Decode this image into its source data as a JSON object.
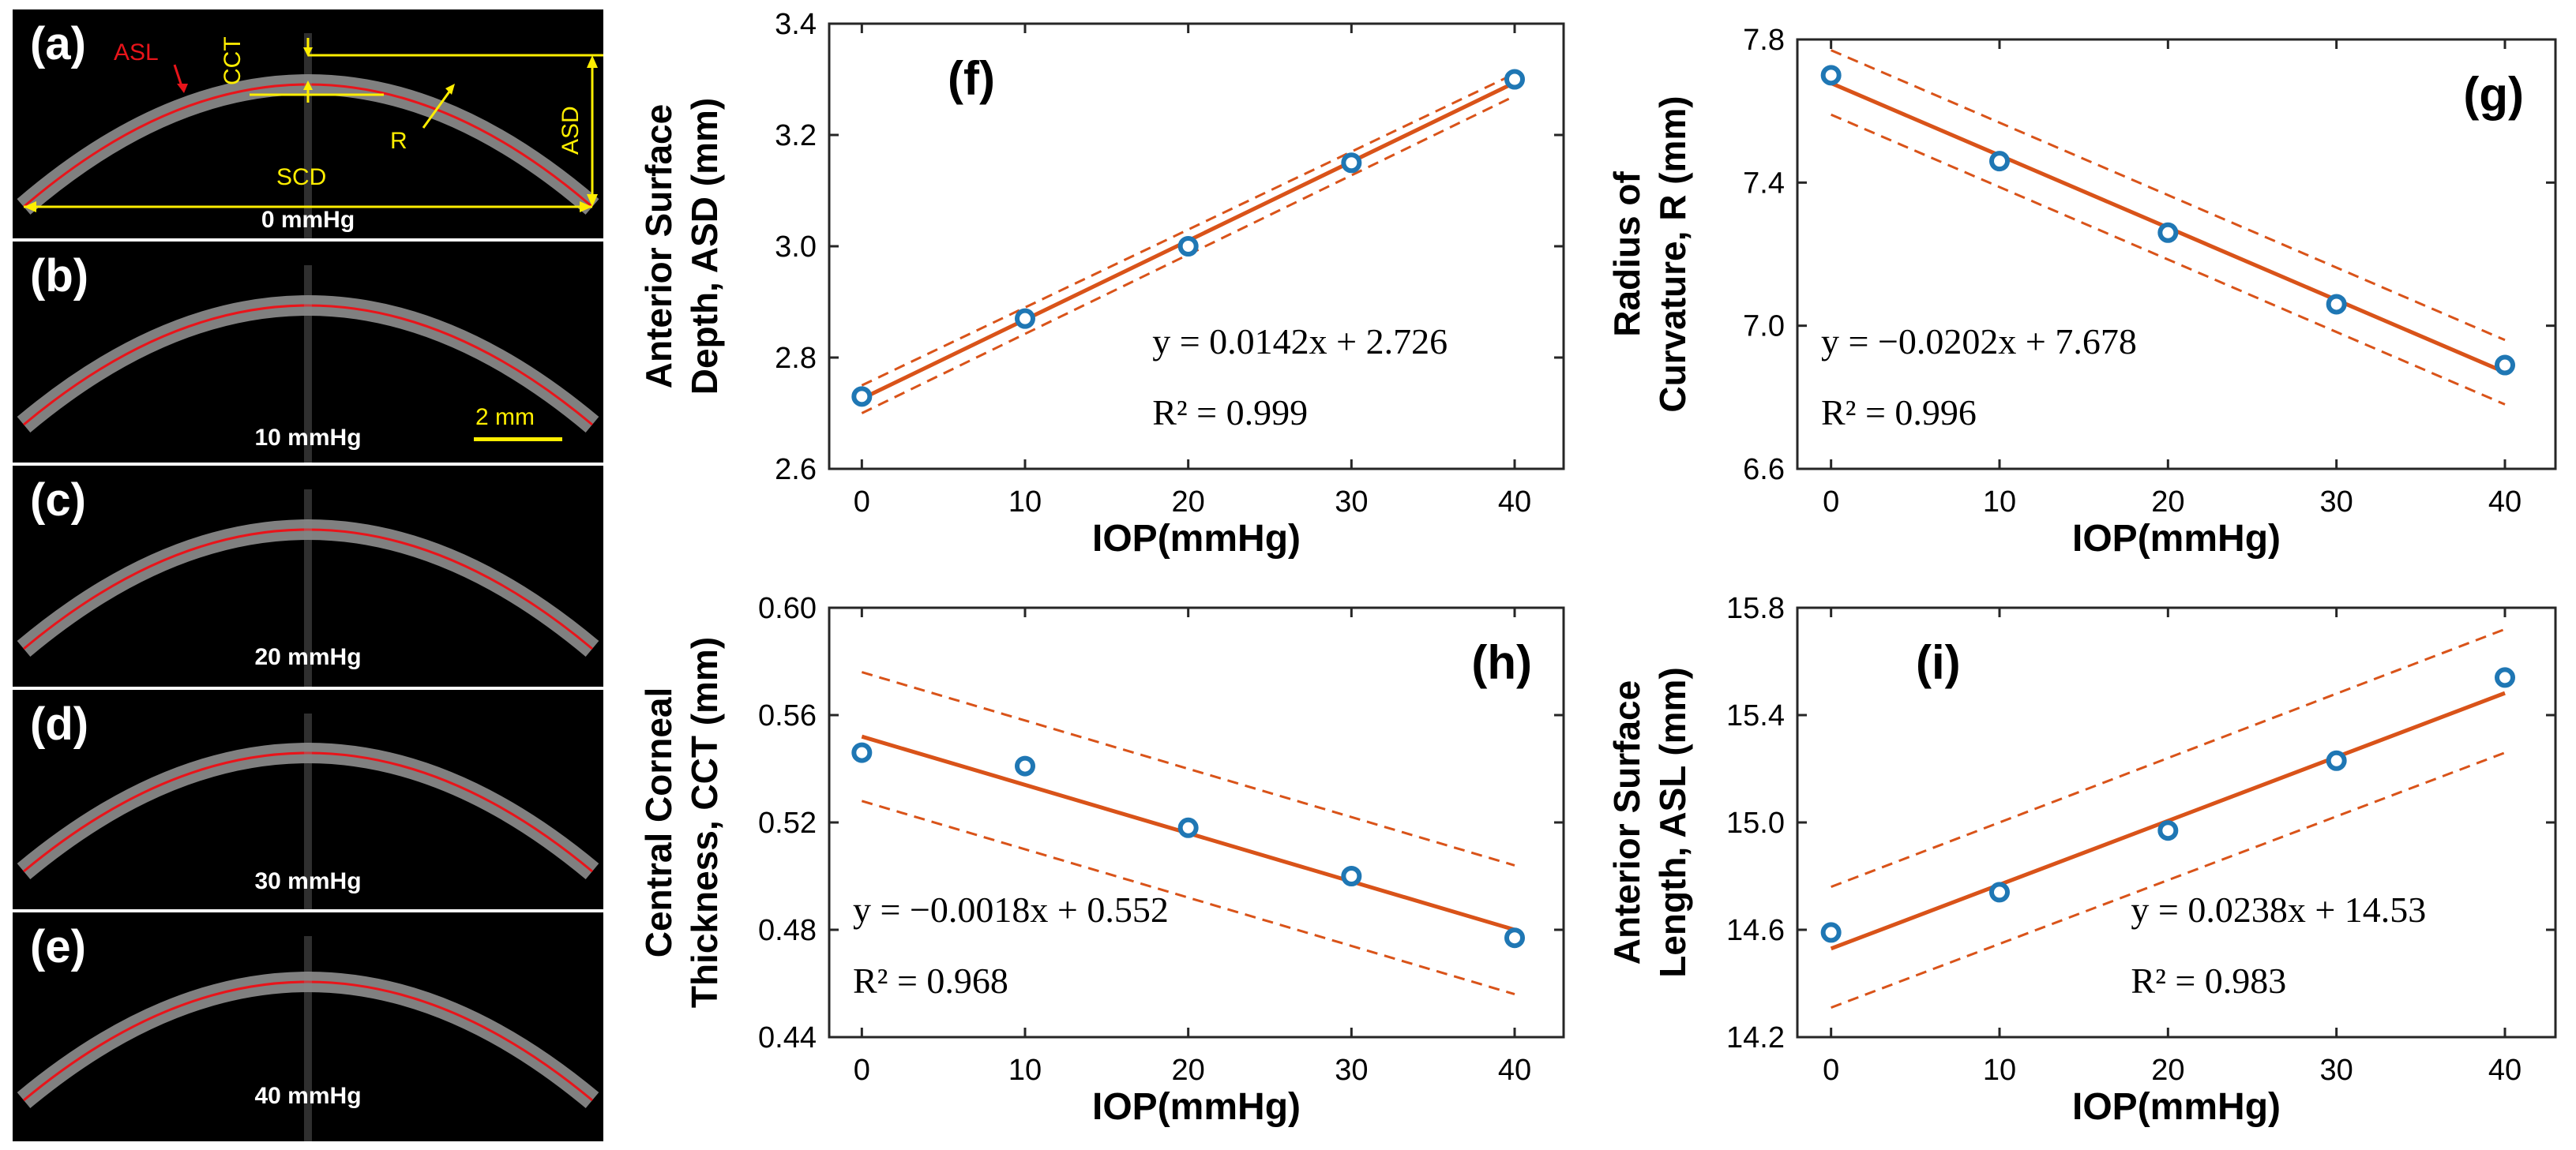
{
  "oct_panels": [
    {
      "letter": "(a)",
      "pressure": "0 mmHg"
    },
    {
      "letter": "(b)",
      "pressure": "10 mmHg"
    },
    {
      "letter": "(c)",
      "pressure": "20 mmHg"
    },
    {
      "letter": "(d)",
      "pressure": "30 mmHg"
    },
    {
      "letter": "(e)",
      "pressure": "40 mmHg"
    }
  ],
  "annotations": {
    "asl": "ASL",
    "cct": "CCT",
    "r": "R",
    "asd": "ASD",
    "scd": "SCD",
    "scale_bar": "2 mm"
  },
  "colors": {
    "points": "#1f77b4",
    "fit": "#d95319",
    "annotation": "#ffee00",
    "edge": "#e8141a"
  },
  "chart_data": [
    {
      "id": "f",
      "type": "scatter",
      "panel_letter": "(f)",
      "letter_pos": "top-left",
      "ylabel_lines": [
        "Anterior Surface",
        "Depth, ASD (mm)"
      ],
      "xlabel": "IOP(mmHg)",
      "x": [
        0,
        10,
        20,
        30,
        40
      ],
      "y": [
        2.73,
        2.87,
        3.0,
        3.15,
        3.3
      ],
      "xlim": [
        -2,
        43
      ],
      "ylim": [
        2.6,
        3.4
      ],
      "xticks": [
        0,
        10,
        20,
        30,
        40
      ],
      "xtick_labels": [
        "0",
        "10",
        "20",
        "30",
        "40"
      ],
      "yticks": [
        2.6,
        2.8,
        3.0,
        3.2,
        3.4
      ],
      "ytick_labels": [
        "2.6",
        "2.8",
        "3.0",
        "3.2",
        "3.4"
      ],
      "fit": {
        "slope": 0.0142,
        "intercept": 2.726
      },
      "ci": {
        "upper": [
          2.75,
          3.31
        ],
        "lower": [
          2.7,
          3.27
        ]
      },
      "equation": "y = 0.0142x + 2.726",
      "r2": "R² = 0.999",
      "equation_pos": "lower-right"
    },
    {
      "id": "g",
      "type": "scatter",
      "panel_letter": "(g)",
      "letter_pos": "top-right",
      "ylabel_lines": [
        "Radius of",
        "Curvature, R (mm)"
      ],
      "xlabel": "IOP(mmHg)",
      "x": [
        0,
        10,
        20,
        30,
        40
      ],
      "y": [
        7.7,
        7.46,
        7.26,
        7.06,
        6.89
      ],
      "xlim": [
        -2,
        43
      ],
      "ylim": [
        6.6,
        7.8
      ],
      "xticks": [
        0,
        10,
        20,
        30,
        40
      ],
      "xtick_labels": [
        "0",
        "10",
        "20",
        "30",
        "40"
      ],
      "yticks": [
        6.6,
        7.0,
        7.4,
        7.8
      ],
      "ytick_labels": [
        "6.6",
        "7.0",
        "7.4",
        "7.8"
      ],
      "fit": {
        "slope": -0.0202,
        "intercept": 7.678
      },
      "ci": {
        "upper": [
          7.77,
          6.96
        ],
        "lower": [
          7.59,
          6.78
        ]
      },
      "equation": "y = −0.0202x + 7.678",
      "r2": "R² = 0.996",
      "equation_pos": "lower-left"
    },
    {
      "id": "h",
      "type": "scatter",
      "panel_letter": "(h)",
      "letter_pos": "top-right",
      "ylabel_lines": [
        "Central Corneal",
        "Thickness, CCT (mm)"
      ],
      "xlabel": "IOP(mmHg)",
      "x": [
        0,
        10,
        20,
        30,
        40
      ],
      "y": [
        0.546,
        0.541,
        0.518,
        0.5,
        0.477
      ],
      "xlim": [
        -2,
        43
      ],
      "ylim": [
        0.44,
        0.6
      ],
      "xticks": [
        0,
        10,
        20,
        30,
        40
      ],
      "xtick_labels": [
        "0",
        "10",
        "20",
        "30",
        "40"
      ],
      "yticks": [
        0.44,
        0.48,
        0.52,
        0.56,
        0.6
      ],
      "ytick_labels": [
        "0.44",
        "0.48",
        "0.52",
        "0.56",
        "0.60"
      ],
      "fit": {
        "slope": -0.0018,
        "intercept": 0.552
      },
      "ci": {
        "upper": [
          0.576,
          0.504
        ],
        "lower": [
          0.528,
          0.456
        ]
      },
      "equation": "y = −0.0018x + 0.552",
      "r2": "R² = 0.968",
      "equation_pos": "lower-left"
    },
    {
      "id": "i",
      "type": "scatter",
      "panel_letter": "(i)",
      "letter_pos": "top-left",
      "ylabel_lines": [
        "Anterior Surface",
        "Length, ASL (mm)"
      ],
      "xlabel": "IOP(mmHg)",
      "x": [
        0,
        10,
        20,
        30,
        40
      ],
      "y": [
        14.59,
        14.74,
        14.97,
        15.23,
        15.54
      ],
      "xlim": [
        -2,
        43
      ],
      "ylim": [
        14.2,
        15.8
      ],
      "xticks": [
        0,
        10,
        20,
        30,
        40
      ],
      "xtick_labels": [
        "0",
        "10",
        "20",
        "30",
        "40"
      ],
      "yticks": [
        14.2,
        14.6,
        15.0,
        15.4,
        15.8
      ],
      "ytick_labels": [
        "14.2",
        "14.6",
        "15.0",
        "15.4",
        "15.8"
      ],
      "fit": {
        "slope": 0.0238,
        "intercept": 14.53
      },
      "ci": {
        "upper": [
          14.76,
          15.72
        ],
        "lower": [
          14.31,
          15.26
        ]
      },
      "equation": "y = 0.0238x + 14.53",
      "r2": "R² = 0.983",
      "equation_pos": "lower-right"
    }
  ]
}
